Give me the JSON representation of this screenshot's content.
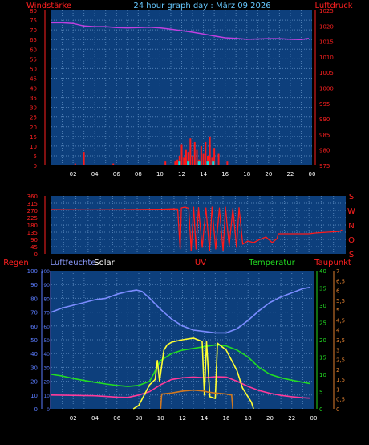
{
  "header": {
    "left_label": "Windstärke",
    "title": "24 hour graph day : März 09 2026",
    "right_label": "Luftdruck"
  },
  "x_tick_labels": [
    "02",
    "04",
    "06",
    "08",
    "10",
    "12",
    "14",
    "16",
    "18",
    "20",
    "22",
    "00"
  ],
  "colors": {
    "plot_bg": "#0d3f7c",
    "grid": "#4f7fb5",
    "wind": "#ff1a1a",
    "gust": "#00e5e5",
    "pressure": "#c040e0",
    "humidity": "#7b8cff",
    "solar": "#ffff33",
    "uv": "#d07820",
    "temperature": "#22dd22",
    "dewpoint": "#ff3a9a",
    "rain": "#ff2a2a"
  },
  "chart_data": [
    {
      "type": "bar",
      "x_unit": "hours",
      "xlim": [
        0,
        24
      ],
      "left_axis": {
        "label": "Windstärke",
        "ylim": [
          0,
          80
        ],
        "ticks": [
          0,
          5,
          10,
          15,
          20,
          25,
          30,
          35,
          40,
          45,
          50,
          55,
          60,
          65,
          70,
          75,
          80
        ]
      },
      "right_axis": {
        "label": "Luftdruck",
        "ylim": [
          975,
          1025
        ],
        "ticks": [
          975,
          980,
          985,
          990,
          995,
          1000,
          1005,
          1010,
          1015,
          1020,
          1025
        ]
      },
      "wind_bars": [
        [
          2.2,
          1
        ],
        [
          3.0,
          7
        ],
        [
          5.7,
          1
        ],
        [
          10.5,
          2
        ],
        [
          11.4,
          2
        ],
        [
          11.6,
          3
        ],
        [
          11.8,
          5
        ],
        [
          12.0,
          11
        ],
        [
          12.2,
          4
        ],
        [
          12.4,
          8
        ],
        [
          12.6,
          7
        ],
        [
          12.8,
          14
        ],
        [
          13.0,
          5
        ],
        [
          13.2,
          12
        ],
        [
          13.4,
          8
        ],
        [
          13.6,
          3
        ],
        [
          13.8,
          10
        ],
        [
          14.0,
          6
        ],
        [
          14.2,
          12
        ],
        [
          14.4,
          5
        ],
        [
          14.6,
          15
        ],
        [
          14.8,
          4
        ],
        [
          15.0,
          9
        ],
        [
          15.4,
          6
        ],
        [
          16.2,
          2
        ]
      ],
      "gust_marks": [
        [
          11.8,
          2
        ],
        [
          12.6,
          2
        ],
        [
          13.6,
          2
        ],
        [
          14.4,
          2
        ],
        [
          14.9,
          2
        ]
      ],
      "pressure_line": [
        [
          0,
          1021
        ],
        [
          1,
          1021
        ],
        [
          2,
          1020.8
        ],
        [
          3,
          1020
        ],
        [
          4,
          1019.8
        ],
        [
          5,
          1019.8
        ],
        [
          6,
          1019.5
        ],
        [
          7,
          1019.4
        ],
        [
          8,
          1019.5
        ],
        [
          9,
          1019.6
        ],
        [
          10,
          1019.4
        ],
        [
          11,
          1019
        ],
        [
          12,
          1018.5
        ],
        [
          13,
          1018
        ],
        [
          14,
          1017.4
        ],
        [
          15,
          1016.8
        ],
        [
          16,
          1016.2
        ],
        [
          17,
          1016
        ],
        [
          18,
          1015.7
        ],
        [
          19,
          1015.8
        ],
        [
          20,
          1015.9
        ],
        [
          21,
          1015.9
        ],
        [
          22,
          1015.7
        ],
        [
          23,
          1015.6
        ],
        [
          23.7,
          1016
        ]
      ]
    },
    {
      "type": "line",
      "x_unit": "hours",
      "xlim": [
        0,
        24
      ],
      "left_axis": {
        "ylim": [
          0,
          360
        ],
        "ticks": [
          0,
          45,
          90,
          135,
          180,
          225,
          270,
          315,
          360
        ]
      },
      "right_labels": [
        "S",
        "O",
        "N",
        "W",
        "S"
      ],
      "direction_line": [
        [
          0,
          275
        ],
        [
          3,
          273
        ],
        [
          6,
          274
        ],
        [
          8,
          276
        ],
        [
          9,
          277
        ],
        [
          10,
          279
        ],
        [
          10.3,
          278
        ],
        [
          10.5,
          30
        ],
        [
          10.6,
          285
        ],
        [
          10.9,
          290
        ],
        [
          11.2,
          282
        ],
        [
          11.4,
          20
        ],
        [
          11.6,
          289
        ],
        [
          11.8,
          30
        ],
        [
          12.0,
          287
        ],
        [
          12.3,
          40
        ],
        [
          12.6,
          285
        ],
        [
          12.9,
          20
        ],
        [
          13.1,
          290
        ],
        [
          13.4,
          30
        ],
        [
          13.7,
          284
        ],
        [
          14.0,
          20
        ],
        [
          14.2,
          289
        ],
        [
          14.5,
          50
        ],
        [
          14.8,
          282
        ],
        [
          15.1,
          40
        ],
        [
          15.3,
          286
        ],
        [
          15.6,
          60
        ],
        [
          16.0,
          80
        ],
        [
          16.5,
          70
        ],
        [
          17.0,
          90
        ],
        [
          17.5,
          105
        ],
        [
          18.0,
          70
        ],
        [
          18.4,
          95
        ],
        [
          18.5,
          125
        ],
        [
          21,
          125
        ],
        [
          21.5,
          130
        ],
        [
          23.5,
          140
        ],
        [
          23.7,
          150
        ]
      ]
    },
    {
      "type": "line",
      "x_unit": "hours",
      "xlim": [
        0,
        24
      ],
      "header_labels": [
        "Regen",
        "Luftfeuchte",
        "Solar",
        "UV",
        "Temperatur",
        "Taupunkt"
      ],
      "rain_axis": {
        "label": "Regen",
        "ylim": [
          0,
          100
        ],
        "ticks": [
          0,
          10,
          20,
          30,
          40,
          50,
          60,
          70,
          80,
          90,
          100
        ]
      },
      "humidity_axis": {
        "label": "Luftfeuchte",
        "ylim": [
          0,
          100
        ],
        "ticks": [
          0,
          10,
          20,
          30,
          40,
          50,
          60,
          70,
          80,
          90,
          100
        ]
      },
      "temperature_axis": {
        "label": "Temperatur",
        "ylim": [
          0,
          40
        ],
        "ticks": [
          0,
          5,
          10,
          15,
          20,
          25,
          30,
          35,
          40
        ]
      },
      "uv_axis": {
        "label": "Taupunkt",
        "ylim": [
          0,
          7
        ],
        "ticks": [
          "0",
          "0,5",
          "1",
          "1,5",
          "2",
          "2,5",
          "3",
          "3,5",
          "4",
          "4,5",
          "5",
          "5,5",
          "6",
          "6,5",
          "7"
        ]
      },
      "series": [
        {
          "name": "Luftfeuchte",
          "axis": "humidity",
          "points": [
            [
              0,
              70
            ],
            [
              1,
              73
            ],
            [
              2,
              75
            ],
            [
              3,
              77
            ],
            [
              4,
              79
            ],
            [
              5,
              80
            ],
            [
              6,
              83
            ],
            [
              7,
              85
            ],
            [
              7.8,
              86
            ],
            [
              8.3,
              85
            ],
            [
              9,
              80
            ],
            [
              10,
              72
            ],
            [
              11,
              65
            ],
            [
              12,
              60
            ],
            [
              13,
              57
            ],
            [
              14,
              56
            ],
            [
              15,
              55
            ],
            [
              16,
              55
            ],
            [
              17,
              58
            ],
            [
              18,
              64
            ],
            [
              19,
              71
            ],
            [
              20,
              77
            ],
            [
              21,
              81
            ],
            [
              22,
              84
            ],
            [
              23,
              87
            ],
            [
              23.7,
              88
            ]
          ]
        },
        {
          "name": "Temperatur",
          "axis": "temperature",
          "points": [
            [
              0,
              10
            ],
            [
              1,
              9.5
            ],
            [
              2,
              8.8
            ],
            [
              3,
              8.2
            ],
            [
              4,
              7.7
            ],
            [
              5,
              7.2
            ],
            [
              6,
              6.8
            ],
            [
              7,
              6.5
            ],
            [
              8,
              6.8
            ],
            [
              9,
              8
            ],
            [
              10,
              14
            ],
            [
              11,
              16
            ],
            [
              12,
              17
            ],
            [
              13,
              17.5
            ],
            [
              14,
              18
            ],
            [
              15,
              18.5
            ],
            [
              16,
              18.2
            ],
            [
              17,
              17
            ],
            [
              18,
              15
            ],
            [
              19,
              12
            ],
            [
              20,
              10
            ],
            [
              21,
              9
            ],
            [
              22,
              8.3
            ],
            [
              23,
              7.7
            ],
            [
              23.7,
              7.3
            ]
          ]
        },
        {
          "name": "Taupunkt",
          "axis": "temperature",
          "points": [
            [
              0,
              4
            ],
            [
              2,
              3.9
            ],
            [
              4,
              3.8
            ],
            [
              6,
              3.4
            ],
            [
              7,
              3.3
            ],
            [
              8,
              4
            ],
            [
              9,
              5
            ],
            [
              10,
              7
            ],
            [
              11,
              8.5
            ],
            [
              12,
              9
            ],
            [
              13,
              9.2
            ],
            [
              14,
              9
            ],
            [
              15,
              9.3
            ],
            [
              16,
              9.2
            ],
            [
              17,
              8
            ],
            [
              18,
              6.5
            ],
            [
              19,
              5.3
            ],
            [
              20,
              4.5
            ],
            [
              21,
              3.9
            ],
            [
              22,
              3.5
            ],
            [
              23,
              3.2
            ],
            [
              23.7,
              3.1
            ]
          ]
        },
        {
          "name": "Solar",
          "axis": "solar",
          "points": [
            [
              7.5,
              0
            ],
            [
              8,
              1
            ],
            [
              8.5,
              4
            ],
            [
              9,
              7
            ],
            [
              9.5,
              8.5
            ],
            [
              9.7,
              14
            ],
            [
              9.9,
              8
            ],
            [
              10.3,
              17
            ],
            [
              10.6,
              18.5
            ],
            [
              11,
              19.3
            ],
            [
              12,
              20
            ],
            [
              13,
              20.5
            ],
            [
              13.8,
              19.5
            ],
            [
              14,
              4
            ],
            [
              14.2,
              19.5
            ],
            [
              14.5,
              3.5
            ],
            [
              15,
              3
            ],
            [
              15.2,
              19
            ],
            [
              16,
              17
            ],
            [
              16.5,
              14
            ],
            [
              17,
              11
            ],
            [
              17.5,
              6
            ],
            [
              18.3,
              2
            ],
            [
              18.5,
              0
            ]
          ]
        },
        {
          "name": "UV",
          "axis": "uv",
          "points": [
            [
              10,
              0
            ],
            [
              10.1,
              0.75
            ],
            [
              11,
              0.8
            ],
            [
              12,
              0.9
            ],
            [
              13,
              0.95
            ],
            [
              14,
              0.9
            ],
            [
              14.3,
              0.85
            ],
            [
              15,
              0.8
            ],
            [
              16,
              0.75
            ],
            [
              16.5,
              0.7
            ],
            [
              16.6,
              0
            ]
          ]
        }
      ]
    }
  ]
}
